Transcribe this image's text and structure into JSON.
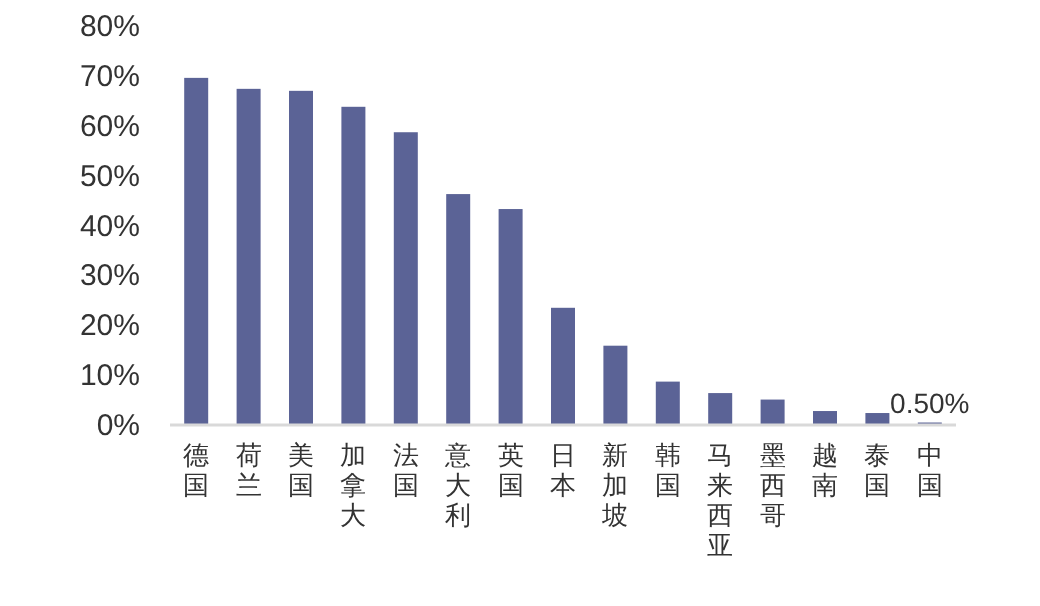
{
  "chart_data": {
    "type": "bar",
    "categories": [
      "德国",
      "荷兰",
      "美国",
      "加拿大",
      "法国",
      "意大利",
      "英国",
      "日本",
      "新加坡",
      "韩国",
      "马来西亚",
      "墨西哥",
      "越南",
      "泰国",
      "中国"
    ],
    "values": [
      69.6,
      67.4,
      67.0,
      63.8,
      58.7,
      46.3,
      43.3,
      23.5,
      15.9,
      8.7,
      6.4,
      5.1,
      2.8,
      2.4,
      0.5
    ],
    "value_labels": [
      null,
      null,
      null,
      null,
      null,
      null,
      null,
      null,
      null,
      null,
      null,
      null,
      null,
      null,
      "0.50%"
    ],
    "color": "#5b6396",
    "ylim": [
      0,
      80
    ],
    "yticks": [
      {
        "value": 0,
        "label": "0%"
      },
      {
        "value": 10,
        "label": "10%"
      },
      {
        "value": 20,
        "label": "20%"
      },
      {
        "value": 30,
        "label": "30%"
      },
      {
        "value": 40,
        "label": "40%"
      },
      {
        "value": 50,
        "label": "50%"
      },
      {
        "value": 60,
        "label": "60%"
      },
      {
        "value": 70,
        "label": "70%"
      },
      {
        "value": 80,
        "label": "80%"
      }
    ],
    "grid": false
  }
}
